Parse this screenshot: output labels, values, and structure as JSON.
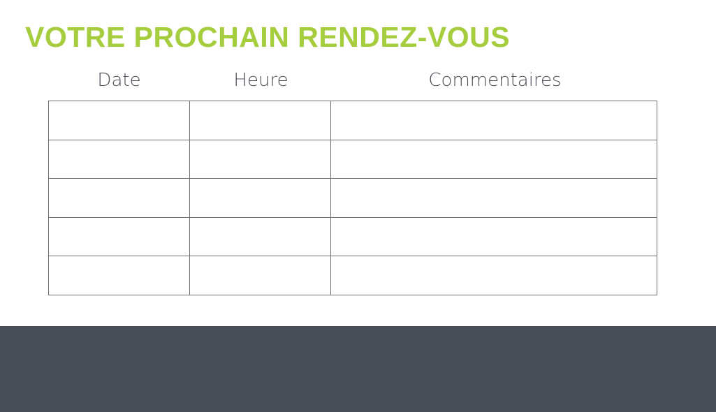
{
  "title": "VOTRE PROCHAIN RENDEZ-VOUS",
  "table": {
    "headers": [
      "Date",
      "Heure",
      "Commentaires"
    ],
    "rows": [
      [
        "",
        "",
        ""
      ],
      [
        "",
        "",
        ""
      ],
      [
        "",
        "",
        ""
      ],
      [
        "",
        "",
        ""
      ],
      [
        "",
        "",
        ""
      ]
    ]
  },
  "colors": {
    "title": "#a5cd3d",
    "text": "#4b4f58",
    "footer_band": "#4a4e57"
  }
}
